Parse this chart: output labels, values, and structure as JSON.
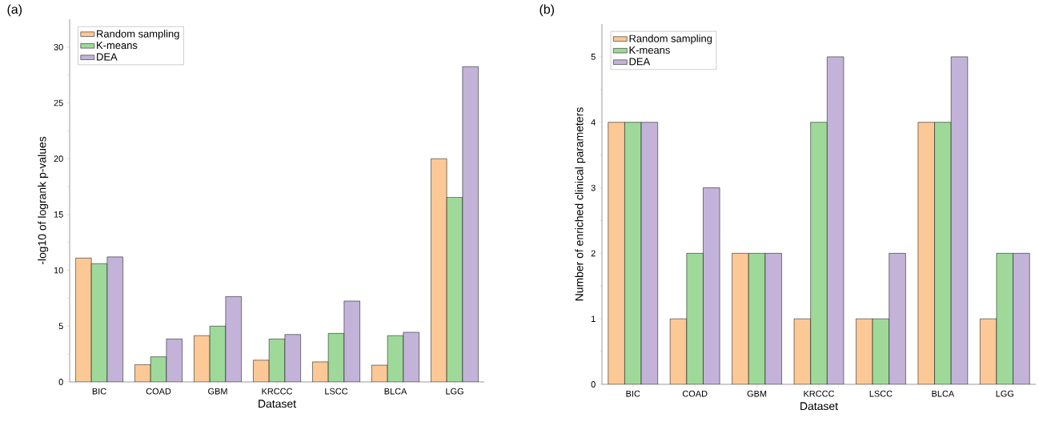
{
  "chart_data": [
    {
      "type": "bar",
      "annotations": [
        "(a)"
      ],
      "xlabel": "Dataset",
      "ylabel": "-log10 of logrank p-values",
      "categories": [
        "BIC",
        "COAD",
        "GBM",
        "KRCCC",
        "LSCC",
        "BLCA",
        "LGG"
      ],
      "series": [
        {
          "name": "Random sampling",
          "color": "#fbc896",
          "values": [
            11.1,
            1.55,
            4.15,
            1.95,
            1.8,
            1.5,
            20.0
          ]
        },
        {
          "name": "K-means",
          "color": "#9ed99a",
          "values": [
            10.6,
            2.25,
            5.0,
            3.85,
            4.35,
            4.15,
            16.55
          ]
        },
        {
          "name": "DEA",
          "color": "#c3b3d9",
          "values": [
            11.2,
            3.85,
            7.65,
            4.25,
            7.25,
            4.45,
            28.25
          ]
        }
      ],
      "ylim": [
        0,
        32.5
      ],
      "yticks": [
        0,
        5,
        10,
        15,
        20,
        25,
        30
      ],
      "legend": "top left",
      "grid": false
    },
    {
      "type": "bar",
      "annotations": [
        "(b)"
      ],
      "xlabel": "Dataset",
      "ylabel": "Number of enriched clinical parameters",
      "categories": [
        "BIC",
        "COAD",
        "GBM",
        "KRCCC",
        "LSCC",
        "BLCA",
        "LGG"
      ],
      "series": [
        {
          "name": "Random sampling",
          "color": "#fbc896",
          "values": [
            4,
            1,
            2,
            1,
            1,
            4,
            1
          ]
        },
        {
          "name": "K-means",
          "color": "#9ed99a",
          "values": [
            4,
            2,
            2,
            4,
            1,
            4,
            2
          ]
        },
        {
          "name": "DEA",
          "color": "#c3b3d9",
          "values": [
            4,
            3,
            2,
            5,
            2,
            5,
            2
          ]
        }
      ],
      "ylim": [
        0,
        5.5
      ],
      "yticks": [
        0,
        1,
        2,
        3,
        4,
        5
      ],
      "legend": "top left",
      "grid": false
    }
  ]
}
